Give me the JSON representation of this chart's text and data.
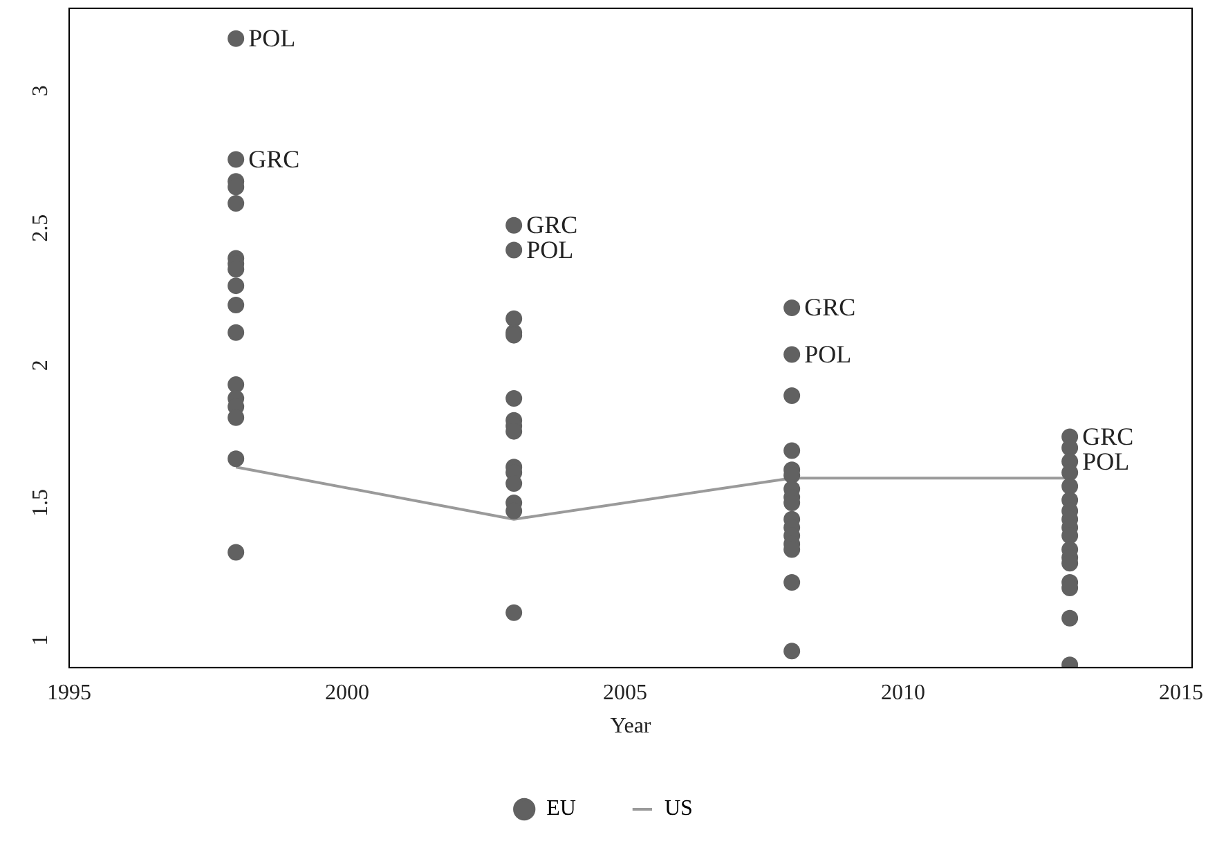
{
  "chart_data": {
    "type": "scatter",
    "xlabel": "Year",
    "xlim": [
      1995,
      2015.2
    ],
    "xticks": [
      1995,
      2000,
      2005,
      2010,
      2015
    ],
    "ylim": [
      0.9,
      3.3
    ],
    "yticks": [
      1,
      1.5,
      2,
      2.5,
      3
    ],
    "grid": false,
    "legend": "bottom",
    "marker": "circle",
    "series": [
      {
        "name": "EU",
        "type": "scatter",
        "color": "#616161",
        "x": [
          1998,
          1998,
          1998,
          1998,
          1998,
          1998,
          1998,
          1998,
          1998,
          1998,
          1998,
          1998,
          1998,
          1998,
          1998,
          1998,
          1998,
          2003,
          2003,
          2003,
          2003,
          2003,
          2003,
          2003,
          2003,
          2003,
          2003,
          2003,
          2003,
          2003,
          2003,
          2003,
          2008,
          2008,
          2008,
          2008,
          2008,
          2008,
          2008,
          2008,
          2008,
          2008,
          2008,
          2008,
          2008,
          2008,
          2008,
          2008,
          2013,
          2013,
          2013,
          2013,
          2013,
          2013,
          2013,
          2013,
          2013,
          2013,
          2013,
          2013,
          2013,
          2013,
          2013,
          2013,
          2013
        ],
        "values": [
          3.19,
          2.75,
          2.67,
          2.65,
          2.59,
          2.39,
          2.37,
          2.35,
          2.29,
          2.22,
          2.12,
          1.93,
          1.88,
          1.85,
          1.81,
          1.66,
          1.32,
          2.51,
          2.42,
          2.17,
          2.12,
          2.11,
          1.88,
          1.8,
          1.78,
          1.76,
          1.63,
          1.61,
          1.57,
          1.5,
          1.47,
          1.1,
          2.21,
          2.04,
          1.89,
          1.69,
          1.62,
          1.6,
          1.55,
          1.52,
          1.5,
          1.44,
          1.41,
          1.38,
          1.35,
          1.33,
          1.21,
          0.96,
          1.74,
          1.7,
          1.65,
          1.61,
          1.56,
          1.51,
          1.47,
          1.44,
          1.41,
          1.38,
          1.33,
          1.3,
          1.28,
          1.21,
          1.19,
          1.08,
          0.91
        ]
      },
      {
        "name": "US",
        "type": "line",
        "color": "#9a9a9a",
        "marker": "none",
        "x": [
          1998,
          2003,
          2008,
          2013
        ],
        "values": [
          1.63,
          1.44,
          1.59,
          1.59
        ]
      }
    ],
    "annotations": [
      {
        "text": "POL",
        "x": 1998,
        "y": 3.19
      },
      {
        "text": "GRC",
        "x": 1998,
        "y": 2.75
      },
      {
        "text": "GRC",
        "x": 2003,
        "y": 2.51
      },
      {
        "text": "POL",
        "x": 2003,
        "y": 2.42
      },
      {
        "text": "GRC",
        "x": 2008,
        "y": 2.21
      },
      {
        "text": "POL",
        "x": 2008,
        "y": 2.04
      },
      {
        "text": "GRC",
        "x": 2013,
        "y": 1.74
      },
      {
        "text": "POL",
        "x": 2013,
        "y": 1.65
      }
    ]
  }
}
